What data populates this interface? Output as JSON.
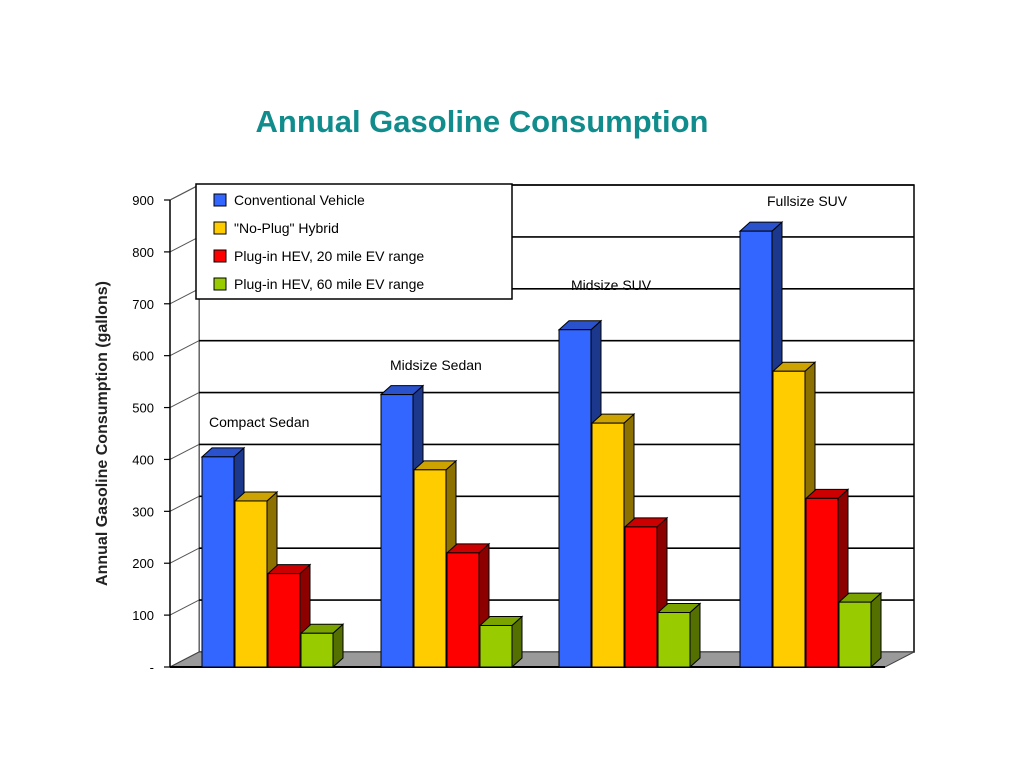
{
  "slide": {
    "title": "Annual Gasoline Consumption"
  },
  "chart_data": {
    "type": "bar",
    "title": "",
    "xlabel": "",
    "ylabel": "Annual Gasoline Consumption (gallons)",
    "categories": [
      "Compact Sedan",
      "Midsize Sedan",
      "Midsize SUV",
      "Fullsize SUV"
    ],
    "series": [
      {
        "name": "Conventional Vehicle",
        "color": "#3366ff",
        "values": [
          405,
          525,
          650,
          840
        ]
      },
      {
        "name": "\"No-Plug\" Hybrid",
        "color": "#ffcc00",
        "values": [
          320,
          380,
          470,
          570
        ]
      },
      {
        "name": "Plug-in HEV, 20 mile EV range",
        "color": "#ff0000",
        "values": [
          180,
          220,
          270,
          325
        ]
      },
      {
        "name": "Plug-in HEV, 60 mile EV range",
        "color": "#99cc00",
        "values": [
          65,
          80,
          105,
          125
        ]
      }
    ],
    "ylim": [
      0,
      900
    ],
    "yticks": [
      0,
      100,
      200,
      300,
      400,
      500,
      600,
      700,
      800,
      900
    ],
    "ytick_labels": [
      "-",
      "100",
      "200",
      "300",
      "400",
      "500",
      "600",
      "700",
      "800",
      "900"
    ],
    "grid": true,
    "legend_position": "top-left",
    "style": "3d-clustered-bars"
  }
}
